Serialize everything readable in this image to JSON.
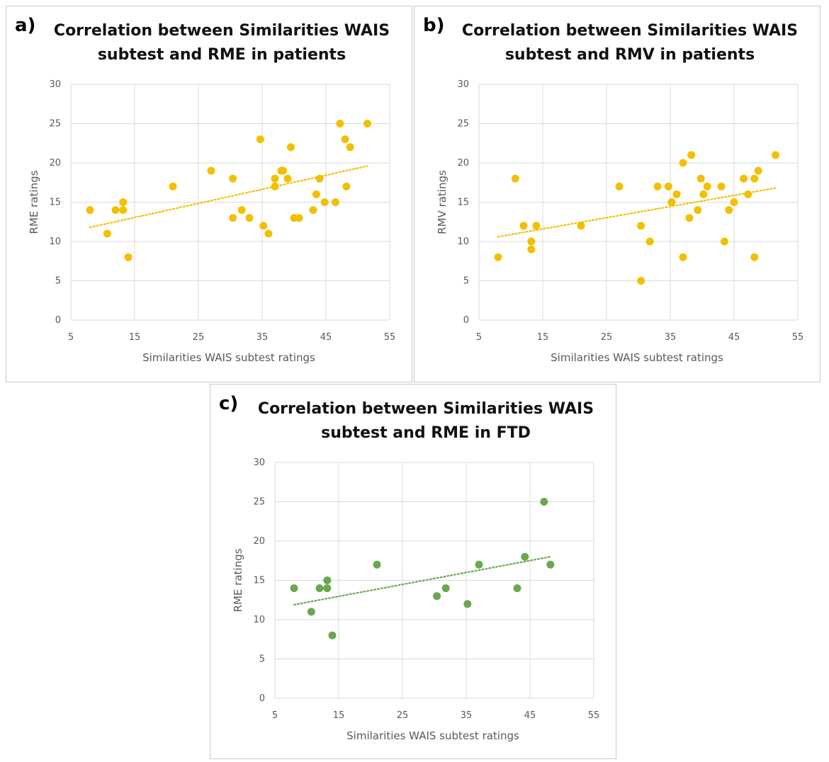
{
  "chart_data": [
    {
      "id": "a",
      "type": "scatter",
      "label": "a)",
      "title_lines": [
        "Correlation between Similarities WAIS",
        "subtest and RME in patients"
      ],
      "xlabel": "Similarities WAIS subtest ratings",
      "ylabel": "RME ratings",
      "xlim": [
        5,
        55
      ],
      "ylim": [
        0,
        30
      ],
      "xticks": [
        "5",
        "15",
        "25",
        "35",
        "45",
        "55"
      ],
      "yticks": [
        "0",
        "5",
        "10",
        "15",
        "20",
        "25",
        "30"
      ],
      "color": "#f2c000",
      "trendline": {
        "x": [
          8,
          51.5
        ],
        "y": [
          11.8,
          19.6
        ]
      },
      "points": [
        {
          "x": 8,
          "y": 14
        },
        {
          "x": 10.7,
          "y": 11
        },
        {
          "x": 12,
          "y": 14
        },
        {
          "x": 13.2,
          "y": 15
        },
        {
          "x": 13.2,
          "y": 14
        },
        {
          "x": 14,
          "y": 8
        },
        {
          "x": 21,
          "y": 17
        },
        {
          "x": 27,
          "y": 19
        },
        {
          "x": 30.4,
          "y": 18
        },
        {
          "x": 30.4,
          "y": 13
        },
        {
          "x": 31.8,
          "y": 14
        },
        {
          "x": 33,
          "y": 13
        },
        {
          "x": 34.7,
          "y": 23
        },
        {
          "x": 35.2,
          "y": 12
        },
        {
          "x": 36,
          "y": 11
        },
        {
          "x": 37,
          "y": 18
        },
        {
          "x": 37,
          "y": 17
        },
        {
          "x": 38,
          "y": 19
        },
        {
          "x": 38.3,
          "y": 19
        },
        {
          "x": 39,
          "y": 18
        },
        {
          "x": 39.5,
          "y": 22
        },
        {
          "x": 40,
          "y": 13
        },
        {
          "x": 40.8,
          "y": 13
        },
        {
          "x": 43,
          "y": 14
        },
        {
          "x": 43.5,
          "y": 16
        },
        {
          "x": 44,
          "y": 18
        },
        {
          "x": 44.8,
          "y": 15
        },
        {
          "x": 46.5,
          "y": 15
        },
        {
          "x": 47.2,
          "y": 25
        },
        {
          "x": 48,
          "y": 23
        },
        {
          "x": 48.2,
          "y": 17
        },
        {
          "x": 48.8,
          "y": 22
        },
        {
          "x": 51.5,
          "y": 25
        }
      ]
    },
    {
      "id": "b",
      "type": "scatter",
      "label": "b)",
      "title_lines": [
        "Correlation between Similarities WAIS",
        "subtest and RMV in patients"
      ],
      "xlabel": "Similarities WAIS subtest ratings",
      "ylabel": "RMV ratings",
      "xlim": [
        5,
        55
      ],
      "ylim": [
        0,
        30
      ],
      "xticks": [
        "5",
        "15",
        "25",
        "35",
        "45",
        "55"
      ],
      "yticks": [
        "0",
        "5",
        "10",
        "15",
        "20",
        "25",
        "30"
      ],
      "color": "#f2c000",
      "trendline": {
        "x": [
          8,
          51.5
        ],
        "y": [
          10.6,
          16.8
        ]
      },
      "points": [
        {
          "x": 8,
          "y": 8
        },
        {
          "x": 10.7,
          "y": 18
        },
        {
          "x": 12,
          "y": 12
        },
        {
          "x": 13.2,
          "y": 10
        },
        {
          "x": 13.2,
          "y": 9
        },
        {
          "x": 14,
          "y": 12
        },
        {
          "x": 21,
          "y": 12
        },
        {
          "x": 27,
          "y": 17
        },
        {
          "x": 30.4,
          "y": 12
        },
        {
          "x": 30.4,
          "y": 5
        },
        {
          "x": 31.8,
          "y": 10
        },
        {
          "x": 33,
          "y": 17
        },
        {
          "x": 34.7,
          "y": 17
        },
        {
          "x": 35.2,
          "y": 15
        },
        {
          "x": 36,
          "y": 16
        },
        {
          "x": 37,
          "y": 20
        },
        {
          "x": 37,
          "y": 8
        },
        {
          "x": 38,
          "y": 13
        },
        {
          "x": 38.3,
          "y": 21
        },
        {
          "x": 39.3,
          "y": 14
        },
        {
          "x": 39.8,
          "y": 18
        },
        {
          "x": 40.2,
          "y": 16
        },
        {
          "x": 40.8,
          "y": 17
        },
        {
          "x": 43,
          "y": 17
        },
        {
          "x": 43.5,
          "y": 10
        },
        {
          "x": 44.2,
          "y": 14
        },
        {
          "x": 45,
          "y": 15
        },
        {
          "x": 46.5,
          "y": 18
        },
        {
          "x": 47.2,
          "y": 16
        },
        {
          "x": 48.2,
          "y": 18
        },
        {
          "x": 48.2,
          "y": 8
        },
        {
          "x": 48.8,
          "y": 19
        },
        {
          "x": 51.5,
          "y": 21
        }
      ]
    },
    {
      "id": "c",
      "type": "scatter",
      "label": "c)",
      "title_lines": [
        "Correlation between Similarities WAIS",
        "subtest and RME in FTD"
      ],
      "xlabel": "Similarities WAIS subtest ratings",
      "ylabel": "RME ratings",
      "xlim": [
        5,
        55
      ],
      "ylim": [
        0,
        30
      ],
      "xticks": [
        "5",
        "15",
        "25",
        "35",
        "45",
        "55"
      ],
      "yticks": [
        "0",
        "5",
        "10",
        "15",
        "20",
        "25",
        "30"
      ],
      "color": "#6aa84f",
      "trendline": {
        "x": [
          8,
          48.2
        ],
        "y": [
          11.9,
          18
        ]
      },
      "points": [
        {
          "x": 8,
          "y": 14
        },
        {
          "x": 10.7,
          "y": 11
        },
        {
          "x": 12,
          "y": 14
        },
        {
          "x": 13.2,
          "y": 15
        },
        {
          "x": 13.2,
          "y": 14
        },
        {
          "x": 14,
          "y": 8
        },
        {
          "x": 21,
          "y": 17
        },
        {
          "x": 30.4,
          "y": 13
        },
        {
          "x": 31.8,
          "y": 14
        },
        {
          "x": 35.2,
          "y": 12
        },
        {
          "x": 37,
          "y": 17
        },
        {
          "x": 43,
          "y": 14
        },
        {
          "x": 44.2,
          "y": 18
        },
        {
          "x": 47.2,
          "y": 25
        },
        {
          "x": 48.2,
          "y": 17
        }
      ]
    }
  ]
}
